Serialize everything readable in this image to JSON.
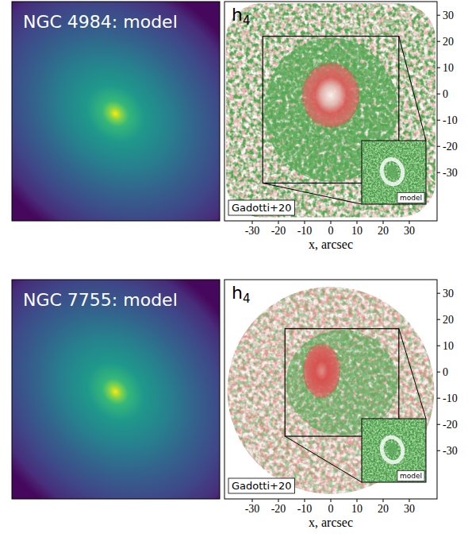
{
  "chart_data": [
    {
      "type": "image",
      "title": "NGC 4984: model"
    },
    {
      "type": "map",
      "title": "h4",
      "annotations": [
        "Gadotti+20",
        "model"
      ],
      "x_label": "x, arcsec",
      "xlim": [
        -40.6,
        40.6
      ],
      "ylim": [
        -48.4,
        35.2
      ],
      "xticks": [
        -30,
        -20,
        -10,
        0,
        10,
        20,
        30
      ],
      "yticks": [
        -30,
        -20,
        -10,
        0,
        10,
        20,
        30
      ],
      "zoom_box": {
        "x": [
          -26,
          26
        ],
        "y": [
          -34,
          22
        ]
      }
    },
    {
      "type": "image",
      "title": "NGC 7755: model"
    },
    {
      "type": "map",
      "title": "h4",
      "annotations": [
        "Gadotti+20",
        "model"
      ],
      "x_label": "x, arcsec",
      "xlim": [
        -40.6,
        40.6
      ],
      "ylim": [
        -48.4,
        35.2
      ],
      "xticks": [
        -30,
        -20,
        -10,
        0,
        10,
        20,
        30
      ],
      "yticks": [
        -30,
        -20,
        -10,
        0,
        10,
        20,
        30
      ],
      "zoom_box": {
        "x": [
          -17.5,
          26
        ],
        "y": [
          -24.5,
          16.5
        ]
      }
    }
  ]
}
